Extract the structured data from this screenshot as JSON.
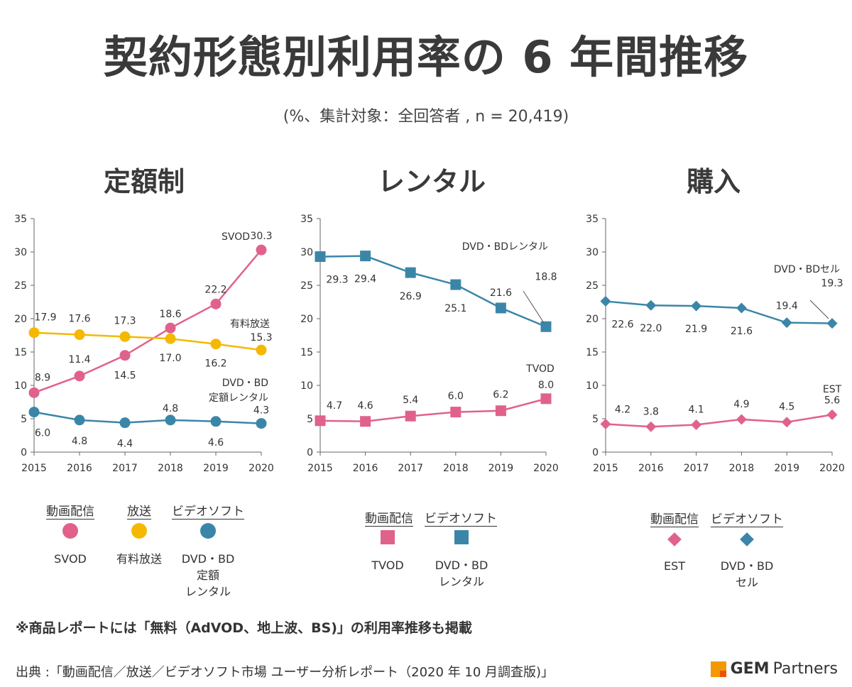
{
  "title": "契約形態別利用率の 6 年間推移",
  "subtitle": "(%、集計対象：全回答者 , n = 20,419)",
  "colors": {
    "pink": "#e0628a",
    "yellow": "#f5b800",
    "blue": "#3b86a8"
  },
  "chart_data": [
    {
      "type": "line",
      "title": "定額制",
      "x": [
        2015,
        2016,
        2017,
        2018,
        2019,
        2020
      ],
      "ylim": [
        0,
        35
      ],
      "yticks": [
        0,
        5,
        10,
        15,
        20,
        25,
        30,
        35
      ],
      "grid": false,
      "series": [
        {
          "name": "SVOD",
          "marker": "circle",
          "color": "#e0628a",
          "values": [
            8.9,
            11.4,
            14.5,
            18.6,
            22.2,
            30.3
          ],
          "labels": [
            "8.9",
            "11.4",
            "14.5",
            "18.6",
            "22.2",
            "30.3"
          ]
        },
        {
          "name": "有料放送",
          "marker": "circle",
          "color": "#f5b800",
          "values": [
            17.9,
            17.6,
            17.3,
            17.0,
            16.2,
            15.3
          ],
          "labels": [
            "17.9",
            "17.6",
            "17.3",
            "17.0",
            "16.2",
            "15.3"
          ]
        },
        {
          "name": "DVD・BD 定額レンタル",
          "marker": "circle",
          "color": "#3b86a8",
          "values": [
            6.0,
            4.8,
            4.4,
            4.8,
            4.6,
            4.3
          ],
          "labels": [
            "6.0",
            "4.8",
            "4.4",
            "4.8",
            "4.6",
            "4.3"
          ]
        }
      ],
      "annotations": [
        "SVOD",
        "有料放送",
        "DVD・BD",
        "定額レンタル"
      ]
    },
    {
      "type": "line",
      "title": "レンタル",
      "x": [
        2015,
        2016,
        2017,
        2018,
        2019,
        2020
      ],
      "ylim": [
        0,
        35
      ],
      "yticks": [
        0,
        5,
        10,
        15,
        20,
        25,
        30,
        35
      ],
      "grid": false,
      "series": [
        {
          "name": "DVD・BDレンタル",
          "marker": "square",
          "color": "#3b86a8",
          "values": [
            29.3,
            29.4,
            26.9,
            25.1,
            21.6,
            18.8
          ],
          "labels": [
            "29.3",
            "29.4",
            "26.9",
            "25.1",
            "21.6",
            "18.8"
          ]
        },
        {
          "name": "TVOD",
          "marker": "square",
          "color": "#e0628a",
          "values": [
            4.7,
            4.6,
            5.4,
            6.0,
            6.2,
            8.0
          ],
          "labels": [
            "4.7",
            "4.6",
            "5.4",
            "6.0",
            "6.2",
            "8.0"
          ]
        }
      ],
      "annotations": [
        "DVD・BDレンタル",
        "TVOD"
      ]
    },
    {
      "type": "line",
      "title": "購入",
      "x": [
        2015,
        2016,
        2017,
        2018,
        2019,
        2020
      ],
      "ylim": [
        0,
        35
      ],
      "yticks": [
        0,
        5,
        10,
        15,
        20,
        25,
        30,
        35
      ],
      "grid": false,
      "series": [
        {
          "name": "DVD・BDセル",
          "marker": "diamond",
          "color": "#3b86a8",
          "values": [
            22.6,
            22.0,
            21.9,
            21.6,
            19.4,
            19.3
          ],
          "labels": [
            "22.6",
            "22.0",
            "21.9",
            "21.6",
            "19.4",
            "19.3"
          ]
        },
        {
          "name": "EST",
          "marker": "diamond",
          "color": "#e0628a",
          "values": [
            4.2,
            3.8,
            4.1,
            4.9,
            4.5,
            5.6
          ],
          "labels": [
            "4.2",
            "3.8",
            "4.1",
            "4.9",
            "4.5",
            "5.6"
          ]
        }
      ],
      "annotations": [
        "DVD・BDセル",
        "EST"
      ]
    }
  ],
  "legends": [
    {
      "categories": [
        "動画配信",
        "放送",
        "ビデオソフト"
      ],
      "items": [
        {
          "label": "SVOD",
          "marker": "circle",
          "color": "#e0628a"
        },
        {
          "label": "有料放送",
          "marker": "circle",
          "color": "#f5b800"
        },
        {
          "label": "DVD・BD\n定額\nレンタル",
          "marker": "circle",
          "color": "#3b86a8"
        }
      ]
    },
    {
      "categories": [
        "動画配信",
        "ビデオソフト"
      ],
      "items": [
        {
          "label": "TVOD",
          "marker": "square",
          "color": "#e0628a"
        },
        {
          "label": "DVD・BD\nレンタル",
          "marker": "square",
          "color": "#3b86a8"
        }
      ]
    },
    {
      "categories": [
        "動画配信",
        "ビデオソフト"
      ],
      "items": [
        {
          "label": "EST",
          "marker": "diamond",
          "color": "#e0628a"
        },
        {
          "label": "DVD・BD\nセル",
          "marker": "diamond",
          "color": "#3b86a8"
        }
      ]
    }
  ],
  "note": "※商品レポートには「無料（AdVOD、地上波、BS)」の利用率推移も掲載",
  "source": "出典 :「動画配信／放送／ビデオソフト市場 ユーザー分析レポート（2020 年 10 月調査版)」",
  "brand": {
    "strong": "GEM",
    "rest": "Partners"
  }
}
